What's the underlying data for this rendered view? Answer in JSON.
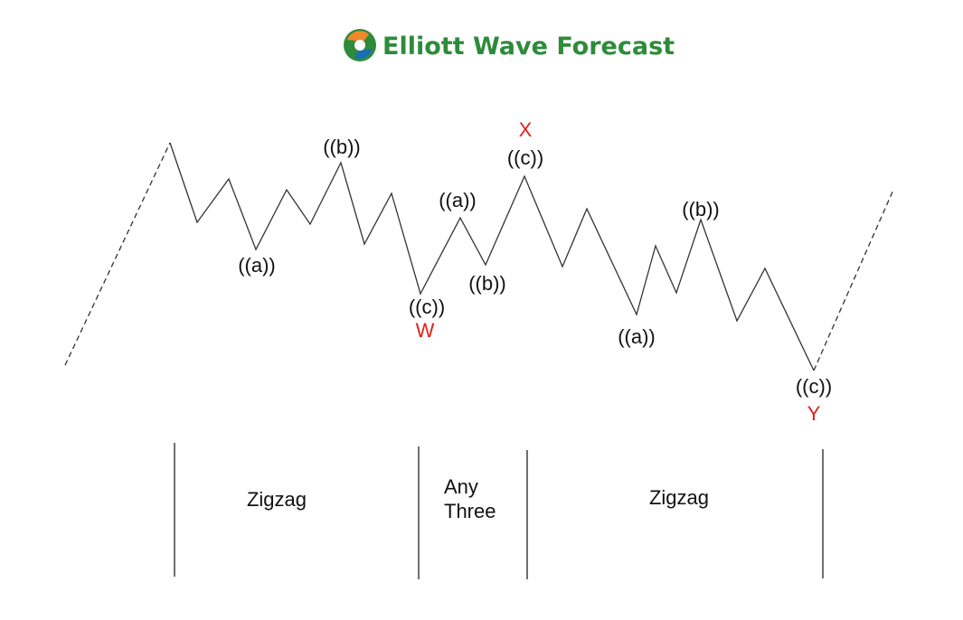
{
  "logo": {
    "text": "Elliott Wave Forecast",
    "icon": "swirl-logo-icon",
    "colors": {
      "green": "#2e8b3a",
      "blue": "#1b6fb5",
      "orange": "#f0892a"
    }
  },
  "wave_labels": {
    "w_a": "((a))",
    "w_b": "((b))",
    "w_c": "((c))",
    "w_end": "W",
    "x_a": "((a))",
    "x_b": "((b))",
    "x_c": "((c))",
    "x_end": "X",
    "y_a": "((a))",
    "y_b": "((b))",
    "y_c": "((c))",
    "y_end": "Y"
  },
  "sections": {
    "first": "Zigzag",
    "middle_line1": "Any",
    "middle_line2": "Three",
    "last": "Zigzag"
  },
  "colors": {
    "line": "#333333",
    "accent": "#e0201a"
  }
}
